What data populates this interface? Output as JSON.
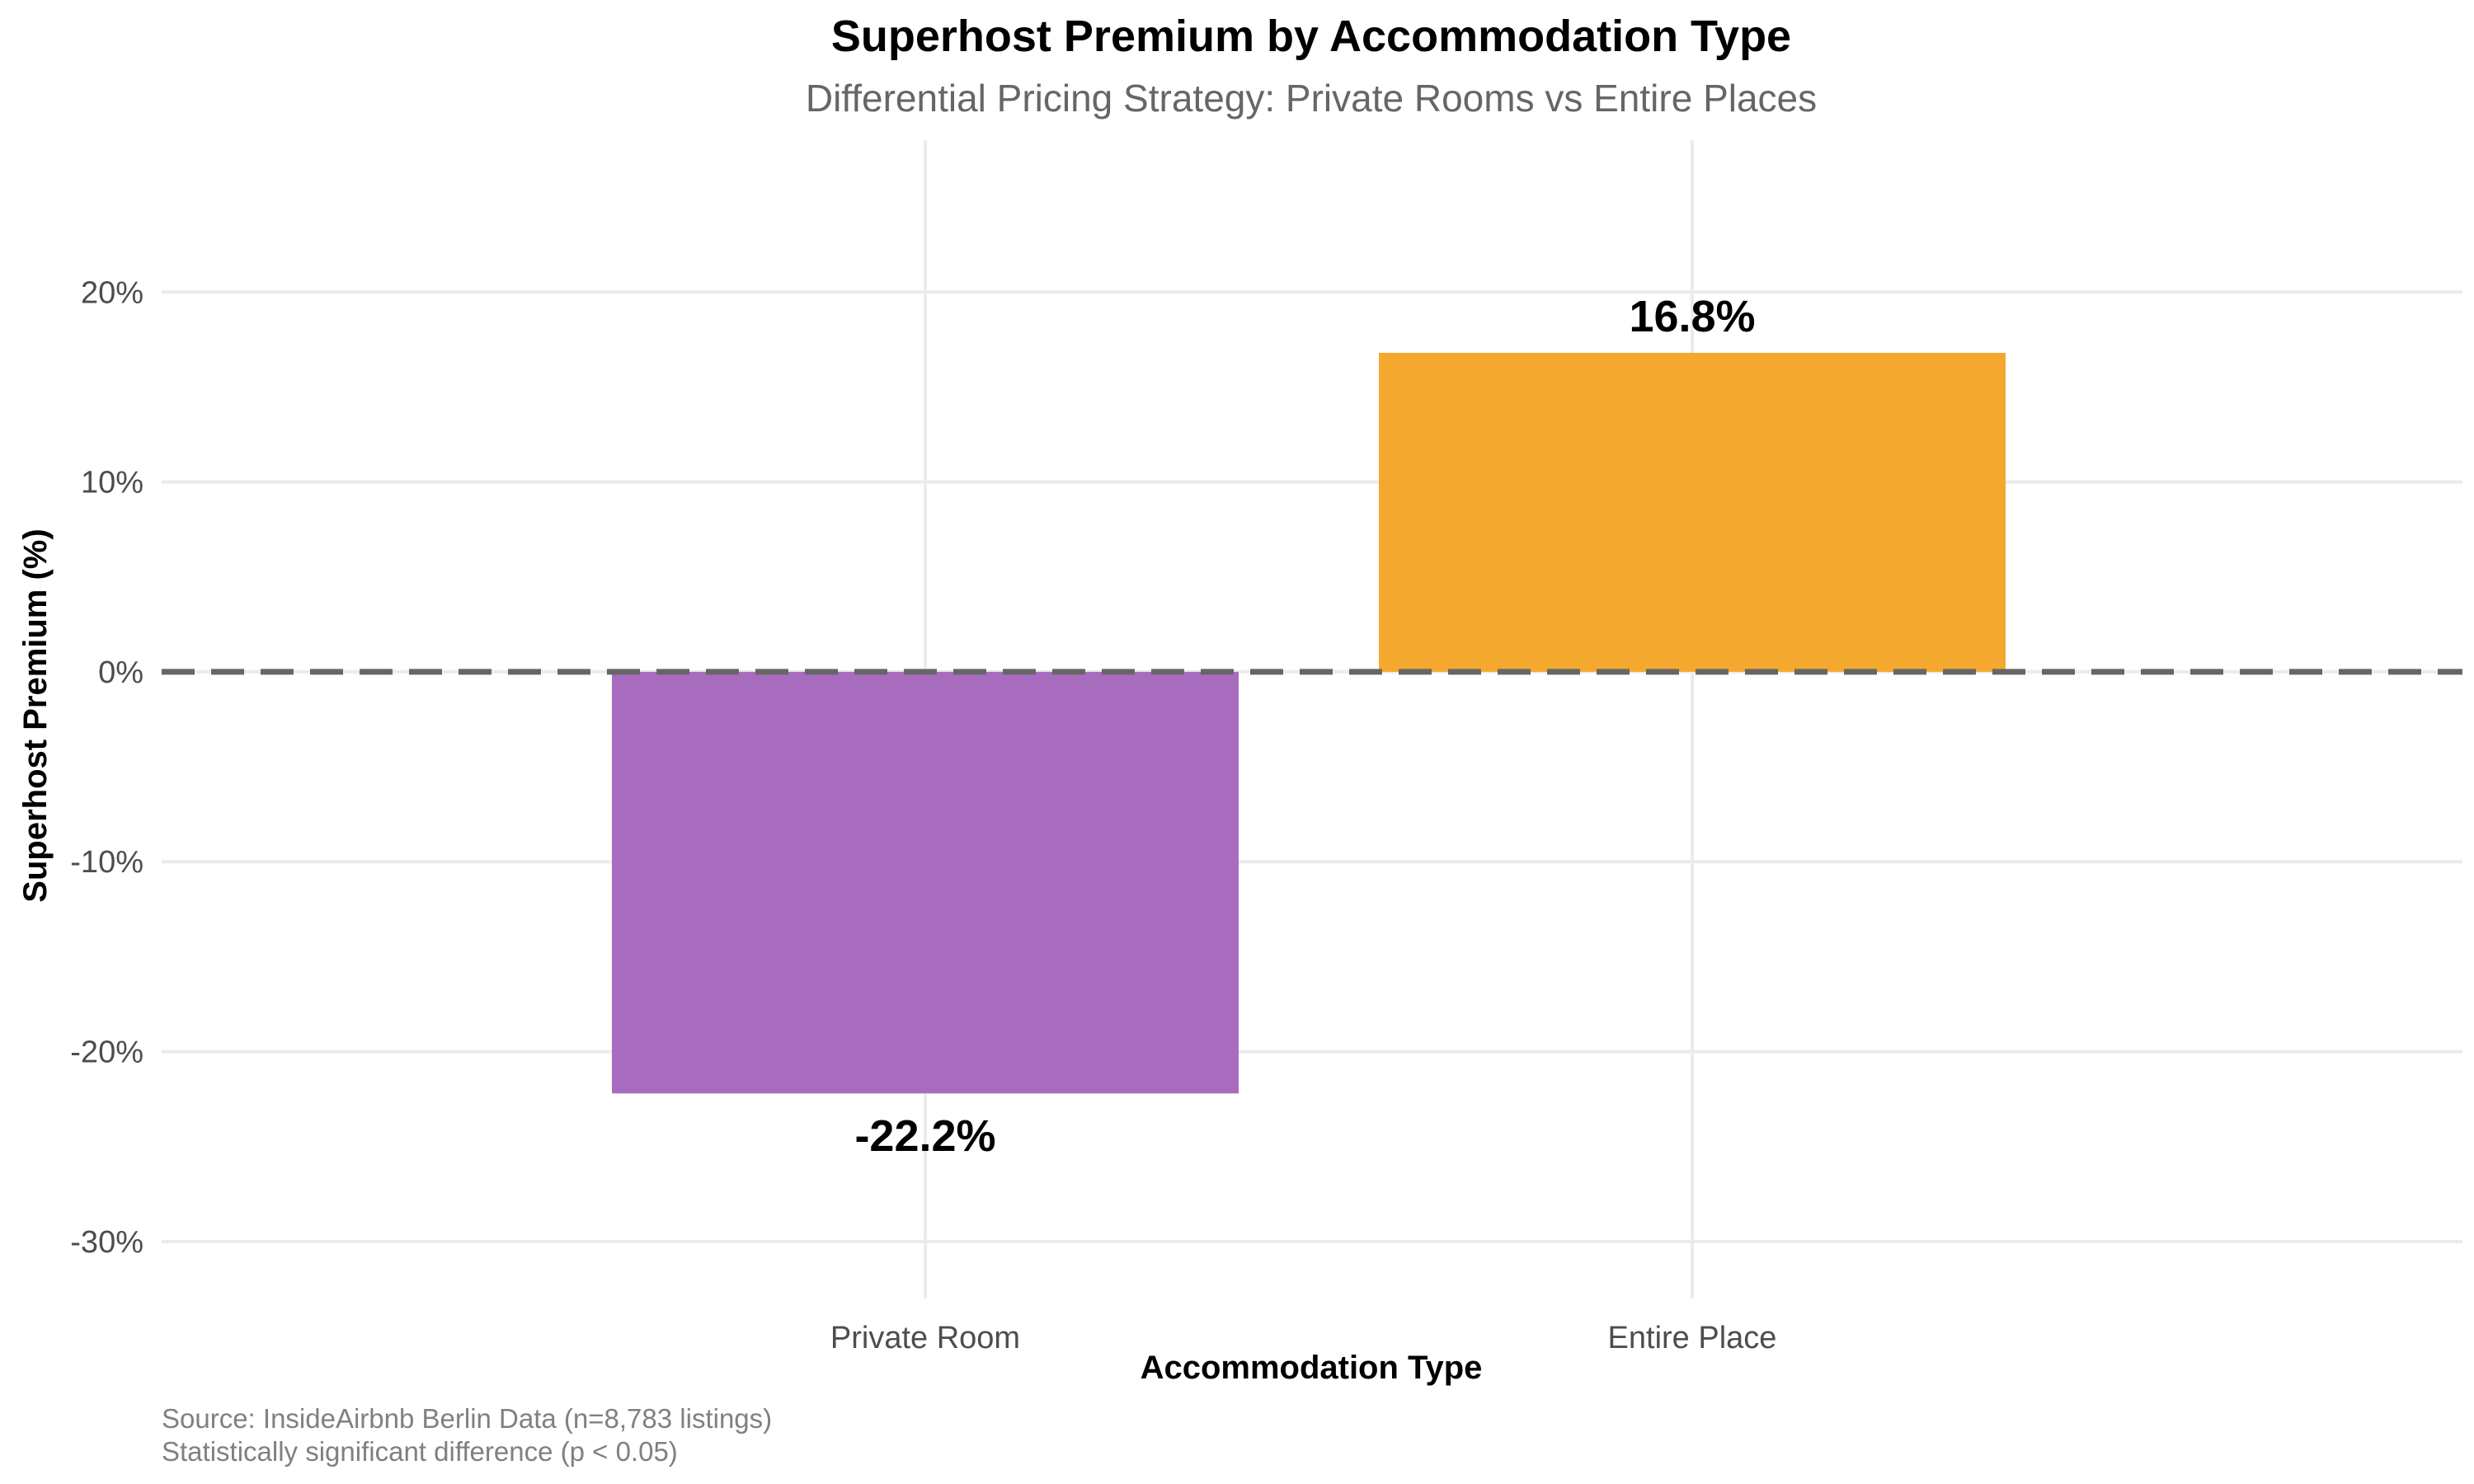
{
  "chart_data": {
    "type": "bar",
    "title": "Superhost Premium by Accommodation Type",
    "subtitle": "Differential Pricing Strategy: Private Rooms vs Entire Places",
    "xlabel": "Accommodation Type",
    "ylabel": "Superhost Premium (%)",
    "categories": [
      "Private Room",
      "Entire Place"
    ],
    "values": [
      -22.2,
      16.8
    ],
    "value_labels": [
      "-22.2%",
      "16.8%"
    ],
    "bar_colors": [
      "#a86cbf",
      "#f4a92e"
    ],
    "ylim": [
      -33,
      28
    ],
    "y_ticks": [
      -30,
      -20,
      -10,
      0,
      10,
      20
    ],
    "y_tick_labels": [
      "-30%",
      "-20%",
      "-10%",
      "0%",
      "10%",
      "20%"
    ],
    "reference_line": {
      "y": 0,
      "style": "dashed",
      "color": "#666666"
    },
    "grid": true,
    "legend": "none",
    "caption": [
      "Source: InsideAirbnb Berlin Data (n=8,783 listings)",
      "Statistically significant difference (p < 0.05)"
    ]
  }
}
